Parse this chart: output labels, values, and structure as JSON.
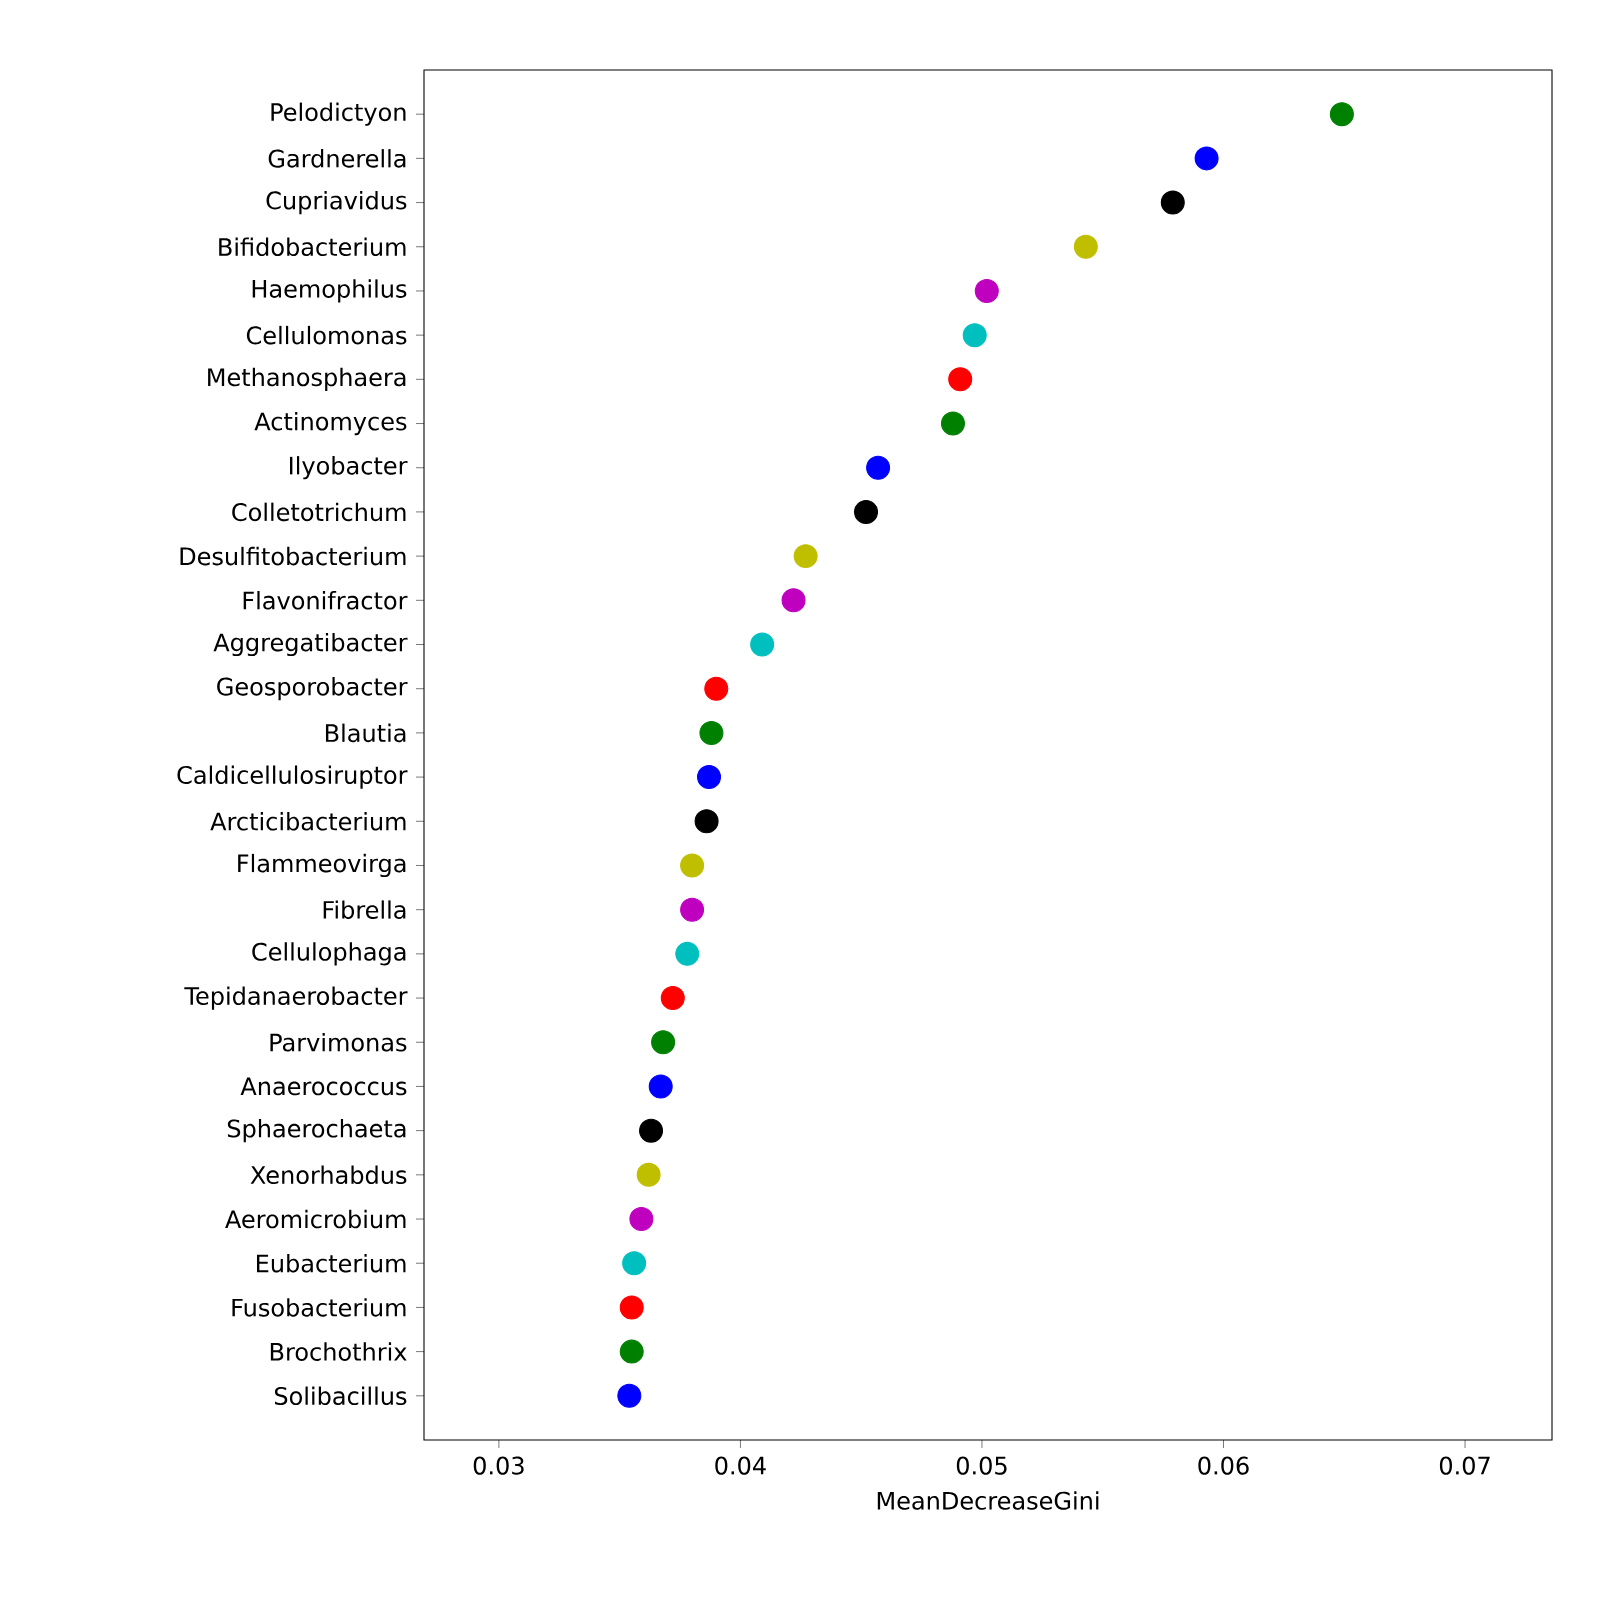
{
  "chart_data": {
    "type": "scatter",
    "orientation": "horizontal",
    "xlabel": "MeanDecreaseGini",
    "categories": [
      "Pelodictyon",
      "Gardnerella",
      "Cupriavidus",
      "Bifidobacterium",
      "Haemophilus",
      "Cellulomonas",
      "Methanosphaera",
      "Actinomyces",
      "Ilyobacter",
      "Colletotrichum",
      "Desulfitobacterium",
      "Flavonifractor",
      "Aggregatibacter",
      "Geosporobacter",
      "Blautia",
      "Caldicellulosiruptor",
      "Arcticibacterium",
      "Flammeovirga",
      "Fibrella",
      "Cellulophaga",
      "Tepidanaerobacter",
      "Parvimonas",
      "Anaerococcus",
      "Sphaerochaeta",
      "Xenorhabdus",
      "Aeromicrobium",
      "Eubacterium",
      "Fusobacterium",
      "Brochothrix",
      "Solibacillus"
    ],
    "values": [
      0.0649,
      0.0593,
      0.0579,
      0.0543,
      0.0502,
      0.0497,
      0.0491,
      0.0488,
      0.0457,
      0.0452,
      0.0427,
      0.0422,
      0.0409,
      0.039,
      0.0388,
      0.0387,
      0.0386,
      0.038,
      0.038,
      0.0378,
      0.0372,
      0.0368,
      0.0367,
      0.0363,
      0.0362,
      0.0359,
      0.0356,
      0.0355,
      0.0355,
      0.0354
    ],
    "colors": [
      "#008000",
      "#0000ff",
      "#000000",
      "#bfbf00",
      "#bf00bf",
      "#00bfbf",
      "#ff0000",
      "#008000",
      "#0000ff",
      "#000000",
      "#bfbf00",
      "#bf00bf",
      "#00bfbf",
      "#ff0000",
      "#008000",
      "#0000ff",
      "#000000",
      "#bfbf00",
      "#bf00bf",
      "#00bfbf",
      "#ff0000",
      "#008000",
      "#0000ff",
      "#000000",
      "#bfbf00",
      "#bf00bf",
      "#00bfbf",
      "#ff0000",
      "#008000",
      "#0000ff"
    ],
    "xlim": [
      0.0269,
      0.0736
    ],
    "xticks": [
      0.03,
      0.04,
      0.05,
      0.06,
      0.07
    ]
  }
}
